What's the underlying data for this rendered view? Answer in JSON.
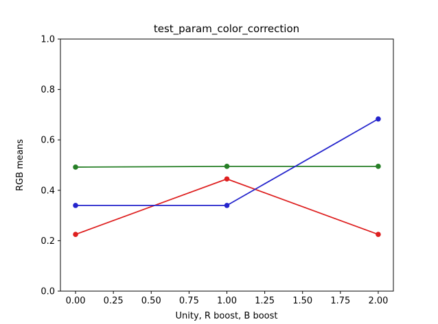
{
  "chart_data": {
    "type": "line",
    "title": "test_param_color_correction",
    "xlabel": "Unity, R boost, B boost",
    "ylabel": "RGB means",
    "x": [
      0,
      1,
      2
    ],
    "series": [
      {
        "name": "red",
        "color": "#de2020",
        "marker": "o",
        "values": [
          0.225,
          0.445,
          0.225
        ]
      },
      {
        "name": "green",
        "color": "#267f26",
        "marker": "o",
        "values": [
          0.492,
          0.495,
          0.495
        ]
      },
      {
        "name": "blue",
        "color": "#2424cc",
        "marker": "o",
        "values": [
          0.34,
          0.34,
          0.683
        ]
      }
    ],
    "xlim": [
      -0.1,
      2.1
    ],
    "ylim": [
      0,
      1
    ],
    "xticks": {
      "values": [
        0,
        0.25,
        0.5,
        0.75,
        1.0,
        1.25,
        1.5,
        1.75,
        2.0
      ],
      "labels": [
        "0.00",
        "0.25",
        "0.50",
        "0.75",
        "1.00",
        "1.25",
        "1.50",
        "1.75",
        "2.00"
      ]
    },
    "yticks": {
      "values": [
        0,
        0.2,
        0.4,
        0.6,
        0.8,
        1.0
      ],
      "labels": [
        "0.0",
        "0.2",
        "0.4",
        "0.6",
        "0.8",
        "1.0"
      ]
    },
    "grid": false,
    "legend": null
  }
}
